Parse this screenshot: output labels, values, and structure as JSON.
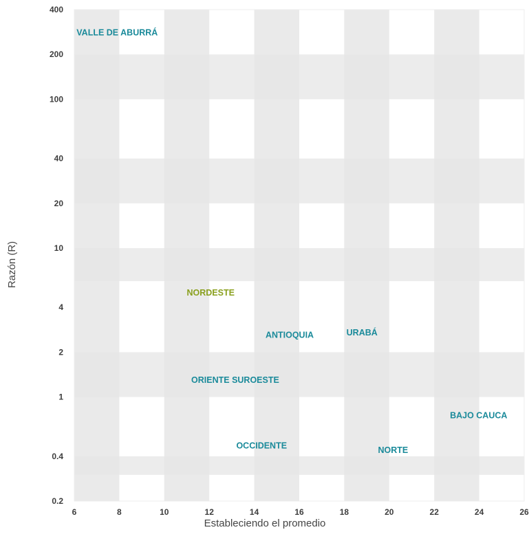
{
  "chart_data": {
    "type": "scatter",
    "title": "",
    "xlabel": "Estableciendo el promedio",
    "ylabel": "Razón (R)",
    "x_scale": "linear",
    "y_scale": "log",
    "xlim": [
      6,
      26
    ],
    "ylim": [
      0.2,
      400
    ],
    "x_ticks": [
      6,
      8,
      10,
      12,
      14,
      16,
      18,
      20,
      22,
      24,
      26
    ],
    "x_tick_labels": [
      "6",
      "8",
      "10",
      "12",
      "14",
      "16",
      "18",
      "20",
      "22",
      "24",
      "26"
    ],
    "y_ticks": [
      0.2,
      0.4,
      1,
      2,
      4,
      10,
      20,
      40,
      100,
      200,
      400
    ],
    "y_tick_labels": [
      "0.2",
      "0.4",
      "1",
      "2",
      "4",
      "10",
      "20",
      "40",
      "100",
      "200",
      "400"
    ],
    "x_bands": [
      [
        6,
        8
      ],
      [
        10,
        12
      ],
      [
        14,
        16
      ],
      [
        18,
        20
      ],
      [
        22,
        24
      ]
    ],
    "y_bands": [
      [
        0.3,
        0.4
      ],
      [
        1,
        2
      ],
      [
        6,
        10
      ],
      [
        20,
        40
      ],
      [
        100,
        200
      ]
    ],
    "colors": {
      "teal": "#1a8a9a",
      "olive": "#8aa01e",
      "band": "#e6e6e6",
      "overlap": "#dedede",
      "tick": "#3d3d3d"
    },
    "points": [
      {
        "label": "VALLE DE ABURRÁ",
        "x": 6.1,
        "y": 280,
        "color": "#1a8a9a"
      },
      {
        "label": "NORDESTE",
        "x": 11.0,
        "y": 5.0,
        "color": "#8aa01e"
      },
      {
        "label": "ANTIOQUIA",
        "x": 14.5,
        "y": 2.6,
        "color": "#1a8a9a"
      },
      {
        "label": "URABÁ",
        "x": 18.1,
        "y": 2.7,
        "color": "#1a8a9a"
      },
      {
        "label": "ORIENTE SUROESTE",
        "x": 11.2,
        "y": 1.3,
        "color": "#1a8a9a"
      },
      {
        "label": "BAJO CAUCA",
        "x": 22.7,
        "y": 0.75,
        "color": "#1a8a9a"
      },
      {
        "label": "OCCIDENTE",
        "x": 13.2,
        "y": 0.47,
        "color": "#1a8a9a"
      },
      {
        "label": "NORTE",
        "x": 19.5,
        "y": 0.44,
        "color": "#1a8a9a"
      }
    ]
  }
}
